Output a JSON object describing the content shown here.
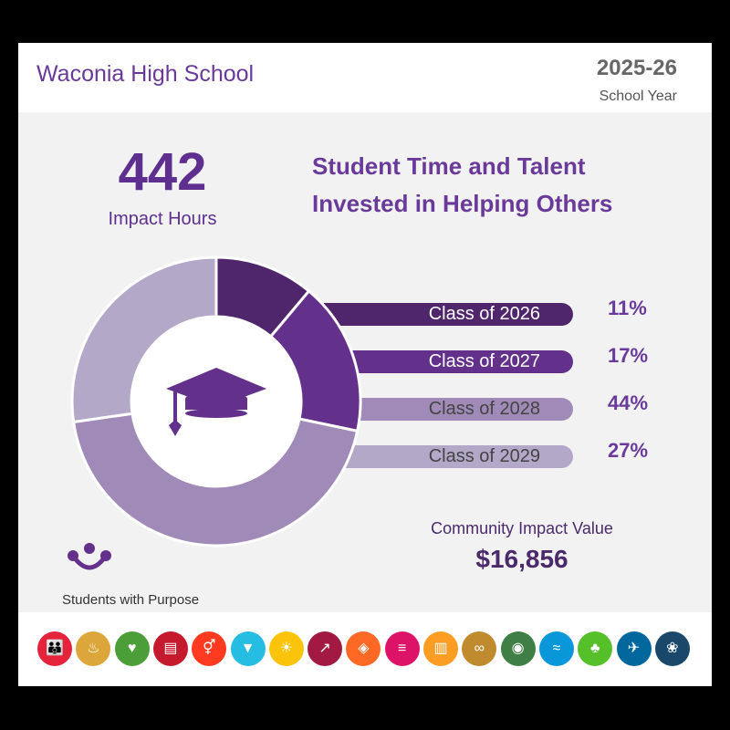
{
  "header": {
    "school": "Waconia High School",
    "year": "2025-26",
    "year_label": "School Year"
  },
  "impact": {
    "hours": "442",
    "hours_label": "Impact Hours"
  },
  "title_line1": "Student Time and Talent",
  "title_line2": "Invested in Helping Others",
  "chart_data": {
    "type": "pie",
    "categories": [
      "Class of 2026",
      "Class of 2027",
      "Class of 2028",
      "Class of 2029"
    ],
    "values": [
      11,
      17,
      44,
      27
    ],
    "labels": [
      "11%",
      "17%",
      "44%",
      "27%"
    ],
    "colors": [
      "#4f256b",
      "#63308b",
      "#a08ab8",
      "#b4a8c9"
    ],
    "center_icon": "graduation-cap-icon"
  },
  "community": {
    "label": "Community Impact Value",
    "value": "$16,856"
  },
  "brand": {
    "name": "Students with Purpose",
    "icon": "connected-people-icon"
  },
  "sdg_icons": [
    {
      "name": "no-poverty-icon",
      "color": "#e5243b",
      "glyph": "👪"
    },
    {
      "name": "zero-hunger-icon",
      "color": "#dda63a",
      "glyph": "♨"
    },
    {
      "name": "good-health-icon",
      "color": "#4c9f38",
      "glyph": "♥"
    },
    {
      "name": "quality-education-icon",
      "color": "#c5192d",
      "glyph": "▤"
    },
    {
      "name": "gender-equality-icon",
      "color": "#ff3a21",
      "glyph": "⚥"
    },
    {
      "name": "clean-water-icon",
      "color": "#26bde2",
      "glyph": "▼"
    },
    {
      "name": "clean-energy-icon",
      "color": "#fcc30b",
      "glyph": "☀"
    },
    {
      "name": "decent-work-icon",
      "color": "#a21942",
      "glyph": "↗"
    },
    {
      "name": "industry-innovation-icon",
      "color": "#fd6925",
      "glyph": "◈"
    },
    {
      "name": "reduced-inequalities-icon",
      "color": "#dd1367",
      "glyph": "≡"
    },
    {
      "name": "sustainable-cities-icon",
      "color": "#fd9d24",
      "glyph": "▥"
    },
    {
      "name": "responsible-consumption-icon",
      "color": "#bf8b2e",
      "glyph": "∞"
    },
    {
      "name": "climate-action-icon",
      "color": "#3f7e44",
      "glyph": "◉"
    },
    {
      "name": "life-below-water-icon",
      "color": "#0a97d9",
      "glyph": "≈"
    },
    {
      "name": "life-on-land-icon",
      "color": "#56c02b",
      "glyph": "♣"
    },
    {
      "name": "peace-justice-icon",
      "color": "#00689d",
      "glyph": "✈"
    },
    {
      "name": "partnerships-icon",
      "color": "#19486a",
      "glyph": "❀"
    }
  ]
}
